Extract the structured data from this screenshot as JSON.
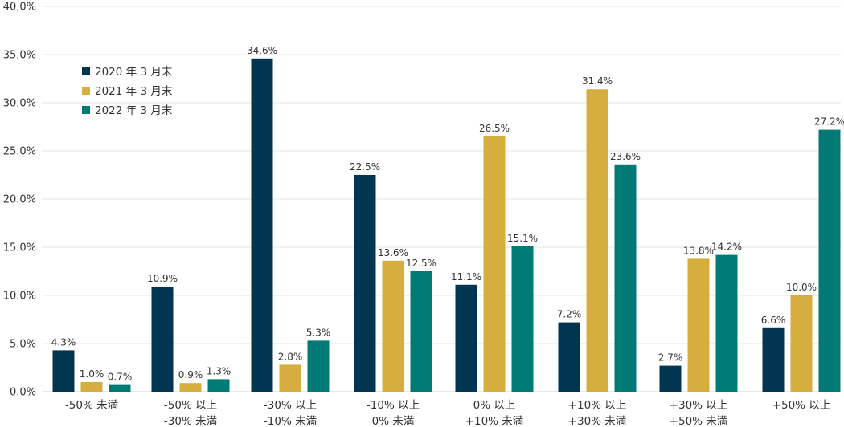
{
  "colors": {
    "series_2020": "#02354f",
    "series_2021": "#d6ae3f",
    "series_2022": "#007a74",
    "grid": "#e6e6e6",
    "axis": "#cccccc",
    "text": "#333333"
  },
  "chart_data": {
    "type": "bar",
    "title": "",
    "xlabel": "",
    "ylabel": "",
    "ylim": [
      0,
      40
    ],
    "grid": true,
    "legend_position": "top-left",
    "y_ticks": [
      "0.0%",
      "5.0%",
      "10.0%",
      "15.0%",
      "20.0%",
      "25.0%",
      "30.0%",
      "35.0%",
      "40.0%"
    ],
    "categories": [
      [
        "-50% 未満"
      ],
      [
        "-50% 以上",
        "-30% 未満"
      ],
      [
        "-30% 以上",
        "-10% 未満"
      ],
      [
        "-10% 以上",
        "0% 未満"
      ],
      [
        "0% 以上",
        "+10% 未満"
      ],
      [
        "+10% 以上",
        "+30% 未満"
      ],
      [
        "+30% 以上",
        "+50% 未満"
      ],
      [
        "+50% 以上"
      ]
    ],
    "series": [
      {
        "name": "2020 年 3 月末",
        "values": [
          4.3,
          10.9,
          34.6,
          22.5,
          11.1,
          7.2,
          2.7,
          6.6
        ],
        "labels": [
          "4.3%",
          "10.9%",
          "34.6%",
          "22.5%",
          "11.1%",
          "7.2%",
          "2.7%",
          "6.6%"
        ]
      },
      {
        "name": "2021 年 3 月末",
        "values": [
          1.0,
          0.9,
          2.8,
          13.6,
          26.5,
          31.4,
          13.8,
          10.0
        ],
        "labels": [
          "1.0%",
          "0.9%",
          "2.8%",
          "13.6%",
          "26.5%",
          "31.4%",
          "13.8%",
          "10.0%"
        ]
      },
      {
        "name": "2022 年 3 月末",
        "values": [
          0.7,
          1.3,
          5.3,
          12.5,
          15.1,
          23.6,
          14.2,
          27.2
        ],
        "labels": [
          "0.7%",
          "1.3%",
          "5.3%",
          "12.5%",
          "15.1%",
          "23.6%",
          "14.2%",
          "27.2%"
        ]
      }
    ]
  }
}
